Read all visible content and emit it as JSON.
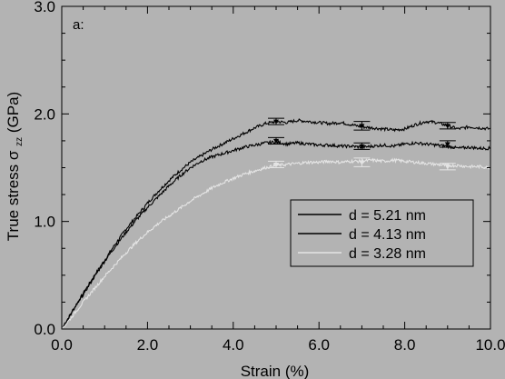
{
  "chart_data": {
    "type": "line",
    "panel_label": "a:",
    "xlabel": "Strain (%)",
    "ylabel_main": "True stress σ",
    "ylabel_sub": "zz",
    "ylabel_unit": " (GPa)",
    "xlim": [
      0,
      10
    ],
    "ylim": [
      0,
      3
    ],
    "xticks": [
      0,
      2,
      4,
      6,
      8,
      10
    ],
    "yticks": [
      0,
      1,
      2,
      3
    ],
    "xtick_labels": [
      "0.0",
      "2.0",
      "4.0",
      "6.0",
      "8.0",
      "10.0"
    ],
    "ytick_labels": [
      "0.0",
      "1.0",
      "2.0",
      "3.0"
    ],
    "grid": false,
    "legend_position": "right",
    "background": "#b3b3b3",
    "series": [
      {
        "name": "d = 5.21 nm",
        "color": "#000000",
        "x": [
          0,
          0.25,
          0.5,
          0.75,
          1.0,
          1.25,
          1.5,
          1.75,
          2.0,
          2.25,
          2.5,
          2.75,
          3.0,
          3.25,
          3.5,
          3.75,
          4.0,
          4.25,
          4.5,
          4.75,
          5.0,
          5.25,
          5.5,
          5.75,
          6.0,
          6.25,
          6.5,
          6.75,
          7.0,
          7.25,
          7.5,
          7.75,
          8.0,
          8.25,
          8.5,
          8.75,
          9.0,
          9.25,
          9.5,
          9.75,
          10.0
        ],
        "y": [
          0,
          0.17,
          0.33,
          0.49,
          0.64,
          0.79,
          0.93,
          1.05,
          1.17,
          1.28,
          1.38,
          1.47,
          1.55,
          1.61,
          1.67,
          1.72,
          1.77,
          1.82,
          1.87,
          1.91,
          1.93,
          1.92,
          1.94,
          1.93,
          1.92,
          1.91,
          1.92,
          1.9,
          1.88,
          1.87,
          1.86,
          1.85,
          1.86,
          1.9,
          1.93,
          1.92,
          1.89,
          1.86,
          1.88,
          1.87,
          1.86
        ]
      },
      {
        "name": "d = 4.13 nm",
        "color": "#000000",
        "x": [
          0,
          0.25,
          0.5,
          0.75,
          1.0,
          1.25,
          1.5,
          1.75,
          2.0,
          2.25,
          2.5,
          2.75,
          3.0,
          3.25,
          3.5,
          3.75,
          4.0,
          4.25,
          4.5,
          4.75,
          5.0,
          5.25,
          5.5,
          5.75,
          6.0,
          6.25,
          6.5,
          6.75,
          7.0,
          7.25,
          7.5,
          7.75,
          8.0,
          8.25,
          8.5,
          8.75,
          9.0,
          9.25,
          9.5,
          9.75,
          10.0
        ],
        "y": [
          0,
          0.16,
          0.32,
          0.48,
          0.63,
          0.77,
          0.9,
          1.02,
          1.13,
          1.23,
          1.33,
          1.42,
          1.5,
          1.56,
          1.6,
          1.63,
          1.66,
          1.69,
          1.71,
          1.73,
          1.74,
          1.72,
          1.73,
          1.72,
          1.71,
          1.71,
          1.7,
          1.7,
          1.69,
          1.7,
          1.71,
          1.7,
          1.72,
          1.73,
          1.72,
          1.71,
          1.7,
          1.68,
          1.69,
          1.68,
          1.68
        ]
      },
      {
        "name": "d = 3.28 nm",
        "color": "#e4e4e4",
        "x": [
          0,
          0.25,
          0.5,
          0.75,
          1.0,
          1.25,
          1.5,
          1.75,
          2.0,
          2.25,
          2.5,
          2.75,
          3.0,
          3.25,
          3.5,
          3.75,
          4.0,
          4.25,
          4.5,
          4.75,
          5.0,
          5.25,
          5.5,
          5.75,
          6.0,
          6.25,
          6.5,
          6.75,
          7.0,
          7.25,
          7.5,
          7.75,
          8.0,
          8.25,
          8.5,
          8.75,
          9.0,
          9.25,
          9.5,
          9.75,
          10.0
        ],
        "y": [
          0,
          0.12,
          0.25,
          0.37,
          0.49,
          0.6,
          0.71,
          0.81,
          0.9,
          0.98,
          1.05,
          1.12,
          1.19,
          1.25,
          1.31,
          1.36,
          1.4,
          1.44,
          1.47,
          1.5,
          1.52,
          1.53,
          1.54,
          1.55,
          1.55,
          1.56,
          1.55,
          1.56,
          1.56,
          1.57,
          1.56,
          1.57,
          1.56,
          1.55,
          1.54,
          1.53,
          1.52,
          1.52,
          1.51,
          1.51,
          1.5
        ]
      }
    ],
    "error_bars": [
      {
        "series": 0,
        "x": [
          5.0,
          7.0,
          9.0
        ],
        "y": [
          1.93,
          1.89,
          1.89
        ],
        "err": [
          0.03,
          0.04,
          0.03
        ]
      },
      {
        "series": 1,
        "x": [
          5.0,
          7.0,
          9.0
        ],
        "y": [
          1.75,
          1.7,
          1.72
        ],
        "err": [
          0.03,
          0.03,
          0.03
        ]
      },
      {
        "series": 2,
        "x": [
          5.0,
          7.0,
          9.0
        ],
        "y": [
          1.53,
          1.55,
          1.51
        ],
        "err": [
          0.03,
          0.04,
          0.03
        ]
      }
    ]
  }
}
